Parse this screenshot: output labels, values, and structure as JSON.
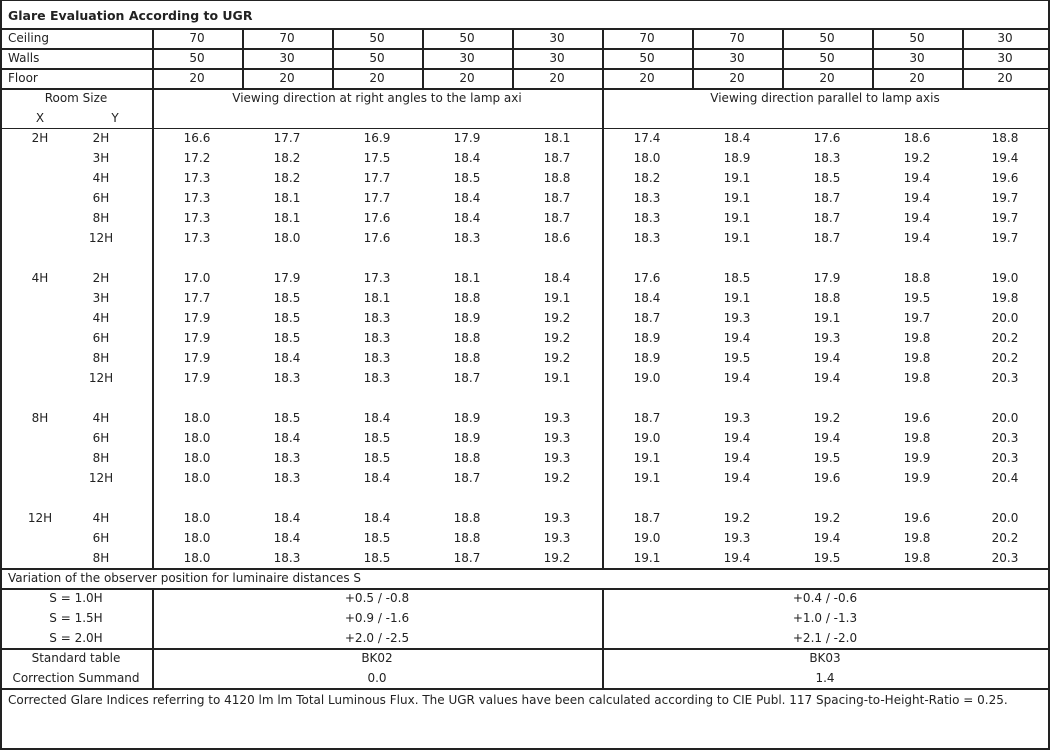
{
  "title": "Glare Evaluation According to UGR",
  "reflectances": [
    {
      "label": "Ceiling",
      "values": [
        "70",
        "70",
        "50",
        "50",
        "30",
        "70",
        "70",
        "50",
        "50",
        "30"
      ]
    },
    {
      "label": "Walls",
      "values": [
        "50",
        "30",
        "50",
        "30",
        "30",
        "50",
        "30",
        "50",
        "30",
        "30"
      ]
    },
    {
      "label": "Floor",
      "values": [
        "20",
        "20",
        "20",
        "20",
        "20",
        "20",
        "20",
        "20",
        "20",
        "20"
      ]
    }
  ],
  "room_size_label": "Room Size",
  "x_label": "X",
  "y_label": "Y",
  "direction_perpendicular": "Viewing direction at right angles to the lamp axi",
  "direction_parallel": "Viewing direction parallel to lamp axis",
  "groups": [
    {
      "x": "2H",
      "rows": [
        {
          "y": "2H",
          "values": [
            "16.6",
            "17.7",
            "16.9",
            "17.9",
            "18.1",
            "17.4",
            "18.4",
            "17.6",
            "18.6",
            "18.8"
          ]
        },
        {
          "y": "3H",
          "values": [
            "17.2",
            "18.2",
            "17.5",
            "18.4",
            "18.7",
            "18.0",
            "18.9",
            "18.3",
            "19.2",
            "19.4"
          ]
        },
        {
          "y": "4H",
          "values": [
            "17.3",
            "18.2",
            "17.7",
            "18.5",
            "18.8",
            "18.2",
            "19.1",
            "18.5",
            "19.4",
            "19.6"
          ]
        },
        {
          "y": "6H",
          "values": [
            "17.3",
            "18.1",
            "17.7",
            "18.4",
            "18.7",
            "18.3",
            "19.1",
            "18.7",
            "19.4",
            "19.7"
          ]
        },
        {
          "y": "8H",
          "values": [
            "17.3",
            "18.1",
            "17.6",
            "18.4",
            "18.7",
            "18.3",
            "19.1",
            "18.7",
            "19.4",
            "19.7"
          ]
        },
        {
          "y": "12H",
          "values": [
            "17.3",
            "18.0",
            "17.6",
            "18.3",
            "18.6",
            "18.3",
            "19.1",
            "18.7",
            "19.4",
            "19.7"
          ]
        }
      ]
    },
    {
      "x": "4H",
      "rows": [
        {
          "y": "2H",
          "values": [
            "17.0",
            "17.9",
            "17.3",
            "18.1",
            "18.4",
            "17.6",
            "18.5",
            "17.9",
            "18.8",
            "19.0"
          ]
        },
        {
          "y": "3H",
          "values": [
            "17.7",
            "18.5",
            "18.1",
            "18.8",
            "19.1",
            "18.4",
            "19.1",
            "18.8",
            "19.5",
            "19.8"
          ]
        },
        {
          "y": "4H",
          "values": [
            "17.9",
            "18.5",
            "18.3",
            "18.9",
            "19.2",
            "18.7",
            "19.3",
            "19.1",
            "19.7",
            "20.0"
          ]
        },
        {
          "y": "6H",
          "values": [
            "17.9",
            "18.5",
            "18.3",
            "18.8",
            "19.2",
            "18.9",
            "19.4",
            "19.3",
            "19.8",
            "20.2"
          ]
        },
        {
          "y": "8H",
          "values": [
            "17.9",
            "18.4",
            "18.3",
            "18.8",
            "19.2",
            "18.9",
            "19.5",
            "19.4",
            "19.8",
            "20.2"
          ]
        },
        {
          "y": "12H",
          "values": [
            "17.9",
            "18.3",
            "18.3",
            "18.7",
            "19.1",
            "19.0",
            "19.4",
            "19.4",
            "19.8",
            "20.3"
          ]
        }
      ]
    },
    {
      "x": "8H",
      "rows": [
        {
          "y": "4H",
          "values": [
            "18.0",
            "18.5",
            "18.4",
            "18.9",
            "19.3",
            "18.7",
            "19.3",
            "19.2",
            "19.6",
            "20.0"
          ]
        },
        {
          "y": "6H",
          "values": [
            "18.0",
            "18.4",
            "18.5",
            "18.9",
            "19.3",
            "19.0",
            "19.4",
            "19.4",
            "19.8",
            "20.3"
          ]
        },
        {
          "y": "8H",
          "values": [
            "18.0",
            "18.3",
            "18.5",
            "18.8",
            "19.3",
            "19.1",
            "19.4",
            "19.5",
            "19.9",
            "20.3"
          ]
        },
        {
          "y": "12H",
          "values": [
            "18.0",
            "18.3",
            "18.4",
            "18.7",
            "19.2",
            "19.1",
            "19.4",
            "19.6",
            "19.9",
            "20.4"
          ]
        }
      ]
    },
    {
      "x": "12H",
      "rows": [
        {
          "y": "4H",
          "values": [
            "18.0",
            "18.4",
            "18.4",
            "18.8",
            "19.3",
            "18.7",
            "19.2",
            "19.2",
            "19.6",
            "20.0"
          ]
        },
        {
          "y": "6H",
          "values": [
            "18.0",
            "18.4",
            "18.5",
            "18.8",
            "19.3",
            "19.0",
            "19.3",
            "19.4",
            "19.8",
            "20.2"
          ]
        },
        {
          "y": "8H",
          "values": [
            "18.0",
            "18.3",
            "18.5",
            "18.7",
            "19.2",
            "19.1",
            "19.4",
            "19.5",
            "19.8",
            "20.3"
          ]
        }
      ]
    }
  ],
  "variation_title": "Variation of the observer position for luminaire distances S",
  "variations": [
    {
      "label": "S = 1.0H",
      "perpendicular": "+0.5 / -0.8",
      "parallel": "+0.4 / -0.6"
    },
    {
      "label": "S = 1.5H",
      "perpendicular": "+0.9 / -1.6",
      "parallel": "+1.0 / -1.3"
    },
    {
      "label": "S = 2.0H",
      "perpendicular": "+2.0 / -2.5",
      "parallel": "+2.1 / -2.0"
    }
  ],
  "standard_table": {
    "label": "Standard table",
    "perpendicular": "BK02",
    "parallel": "BK03"
  },
  "correction": {
    "label": "Correction Summand",
    "perpendicular": "0.0",
    "parallel": "1.4"
  },
  "footer": "Corrected Glare Indices referring to 4120 lm lm Total Luminous Flux. The UGR values have been calculated according to CIE Publ. 117    Spacing-to-Height-Ratio = 0.25."
}
